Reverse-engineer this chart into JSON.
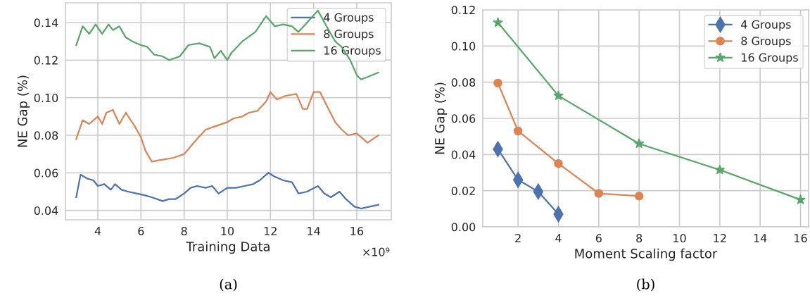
{
  "chart_data": [
    {
      "type": "line",
      "xlabel": "Training Data",
      "ylabel": "NE Gap (%)",
      "xlim": [
        2.5,
        17.6
      ],
      "ylim": [
        0.035,
        0.1505
      ],
      "xticks": [
        4,
        6,
        8,
        10,
        12,
        14,
        16
      ],
      "yticks": [
        {
          "value": 0.04,
          "label": "0.04"
        },
        {
          "value": 0.06,
          "label": "0.06"
        },
        {
          "value": 0.08,
          "label": "0.08"
        },
        {
          "value": 0.1,
          "label": "0.10"
        },
        {
          "value": 0.12,
          "label": "0.12"
        },
        {
          "value": 0.14,
          "label": "0.14"
        }
      ],
      "grid": true,
      "legend": "top right",
      "annotations": [
        "×10⁹",
        "(a)"
      ],
      "series": [
        {
          "name": "4 Groups",
          "color": "#4c72b0",
          "x": [
            3,
            3.2,
            3.5,
            3.8,
            4,
            4.3,
            4.6,
            4.8,
            5.1,
            5.4,
            5.8,
            6.2,
            6.5,
            7,
            7.3,
            7.6,
            8,
            8.3,
            8.6,
            9,
            9.3,
            9.6,
            10,
            10.4,
            10.8,
            11.2,
            11.5,
            11.9,
            12.2,
            12.6,
            13,
            13.3,
            13.7,
            14.2,
            14.5,
            14.8,
            15.2,
            15.5,
            15.9,
            16.2,
            16.6,
            17
          ],
          "values": [
            0.047,
            0.059,
            0.057,
            0.056,
            0.053,
            0.054,
            0.051,
            0.054,
            0.051,
            0.05,
            0.049,
            0.048,
            0.047,
            0.045,
            0.046,
            0.046,
            0.049,
            0.052,
            0.053,
            0.052,
            0.053,
            0.049,
            0.052,
            0.052,
            0.053,
            0.054,
            0.056,
            0.06,
            0.058,
            0.056,
            0.055,
            0.049,
            0.05,
            0.053,
            0.049,
            0.047,
            0.05,
            0.046,
            0.042,
            0.041,
            0.042,
            0.043
          ]
        },
        {
          "name": "8 Groups",
          "color": "#dd8452",
          "x": [
            3,
            3.3,
            3.6,
            4,
            4.2,
            4.4,
            4.7,
            5,
            5.3,
            5.7,
            6,
            6.2,
            6.5,
            7,
            7.5,
            8,
            8.3,
            8.6,
            9,
            9.5,
            10,
            10.3,
            10.7,
            11,
            11.4,
            11.8,
            12,
            12.3,
            12.7,
            13.2,
            13.5,
            13.7,
            14,
            14.3,
            14.6,
            15,
            15.3,
            15.6,
            16,
            16.3,
            16.5,
            17
          ],
          "values": [
            0.078,
            0.088,
            0.086,
            0.09,
            0.086,
            0.092,
            0.0935,
            0.086,
            0.092,
            0.085,
            0.079,
            0.072,
            0.066,
            0.067,
            0.068,
            0.07,
            0.074,
            0.078,
            0.083,
            0.085,
            0.087,
            0.089,
            0.09,
            0.092,
            0.093,
            0.098,
            0.103,
            0.099,
            0.101,
            0.102,
            0.094,
            0.094,
            0.103,
            0.103,
            0.096,
            0.087,
            0.083,
            0.08,
            0.081,
            0.078,
            0.076,
            0.08
          ]
        },
        {
          "name": "16 Groups",
          "color": "#55a868",
          "x": [
            3,
            3.3,
            3.6,
            3.9,
            4.2,
            4.5,
            4.7,
            5,
            5.3,
            5.6,
            6,
            6.3,
            6.6,
            7,
            7.3,
            7.8,
            8.2,
            8.7,
            9.2,
            9.4,
            9.7,
            10,
            10.2,
            10.7,
            11.3,
            11.8,
            12.2,
            12.6,
            13,
            13.3,
            13.7,
            14.2,
            14.6,
            15,
            15.3,
            15.7,
            16,
            16.2,
            16.5,
            17
          ],
          "values": [
            0.128,
            0.138,
            0.134,
            0.139,
            0.134,
            0.139,
            0.136,
            0.138,
            0.132,
            0.13,
            0.128,
            0.127,
            0.123,
            0.122,
            0.12,
            0.122,
            0.128,
            0.129,
            0.127,
            0.121,
            0.125,
            0.12,
            0.124,
            0.13,
            0.135,
            0.1434,
            0.138,
            0.139,
            0.138,
            0.135,
            0.14,
            0.1464,
            0.138,
            0.13,
            0.127,
            0.12,
            0.112,
            0.1097,
            0.111,
            0.1134
          ]
        }
      ]
    },
    {
      "type": "line",
      "xlabel": "Moment Scaling factor",
      "ylabel": "NE Gap (%)",
      "xlim": [
        0.25,
        16.4
      ],
      "ylim": [
        0,
        0.12
      ],
      "xticks": [
        2,
        4,
        6,
        8,
        10,
        12,
        14,
        16
      ],
      "yticks": [
        {
          "value": 0,
          "label": "0.00"
        },
        {
          "value": 0.02,
          "label": "0.02"
        },
        {
          "value": 0.04,
          "label": "0.04"
        },
        {
          "value": 0.06,
          "label": "0.06"
        },
        {
          "value": 0.08,
          "label": "0.08"
        },
        {
          "value": 0.1,
          "label": "0.10"
        },
        {
          "value": 0.12,
          "label": "0.12"
        }
      ],
      "grid": true,
      "legend": "top right",
      "annotations": [
        "(b)"
      ],
      "series": [
        {
          "name": "4 Groups",
          "color": "#4c72b0",
          "marker": "diamond",
          "x": [
            1,
            2,
            3,
            4
          ],
          "values": [
            0.043,
            0.026,
            0.0195,
            0.007
          ]
        },
        {
          "name": "8 Groups",
          "color": "#dd8452",
          "marker": "circle",
          "x": [
            1,
            2,
            4,
            6,
            8
          ],
          "values": [
            0.0795,
            0.053,
            0.035,
            0.0185,
            0.017
          ]
        },
        {
          "name": "16 Groups",
          "color": "#55a868",
          "marker": "star",
          "x": [
            1,
            4,
            8,
            12,
            16
          ],
          "values": [
            0.113,
            0.0725,
            0.046,
            0.0315,
            0.015
          ]
        }
      ]
    }
  ]
}
